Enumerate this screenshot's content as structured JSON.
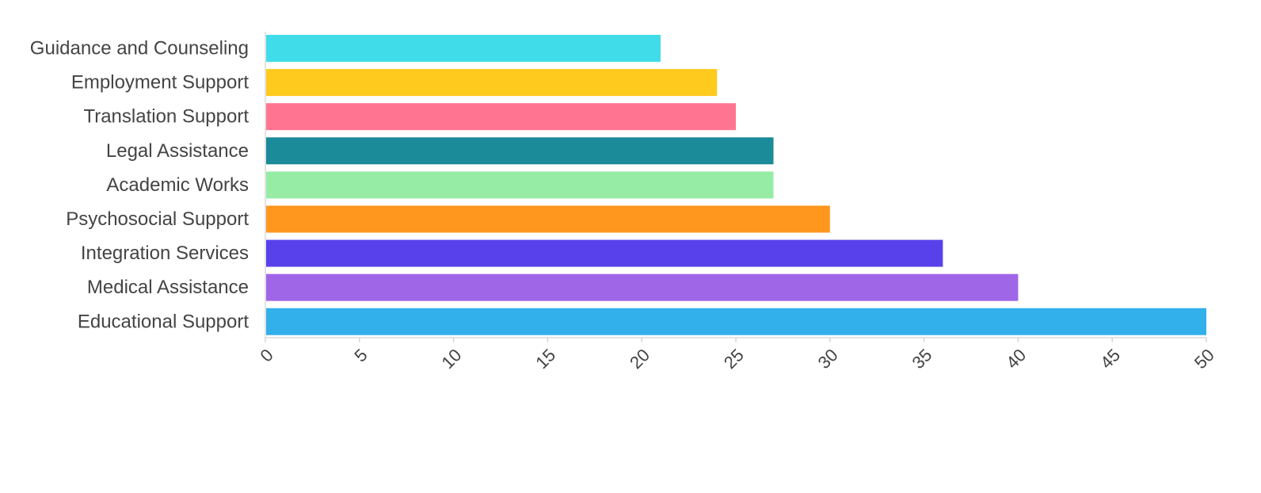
{
  "chart_data": {
    "type": "bar",
    "orientation": "horizontal",
    "categories": [
      "Guidance and Counseling",
      "Employment Support",
      "Translation Support",
      "Legal Assistance",
      "Academic Works",
      "Psychosocial Support",
      "Integration Services",
      "Medical Assistance",
      "Educational Support"
    ],
    "values": [
      21,
      24,
      25,
      27,
      27,
      30,
      36,
      40,
      50
    ],
    "colors": [
      "#41DCE9",
      "#FFCA1E",
      "#FF7591",
      "#1B8A99",
      "#96ECA5",
      "#FF961E",
      "#5841EA",
      "#A066E8",
      "#31B0EC"
    ],
    "title": "",
    "xlabel": "",
    "ylabel": "",
    "xlim": [
      0,
      50
    ],
    "x_ticks": [
      "0",
      "5",
      "10",
      "15",
      "20",
      "25",
      "30",
      "35",
      "40",
      "45",
      "50"
    ],
    "grid": false,
    "legend": "none"
  }
}
